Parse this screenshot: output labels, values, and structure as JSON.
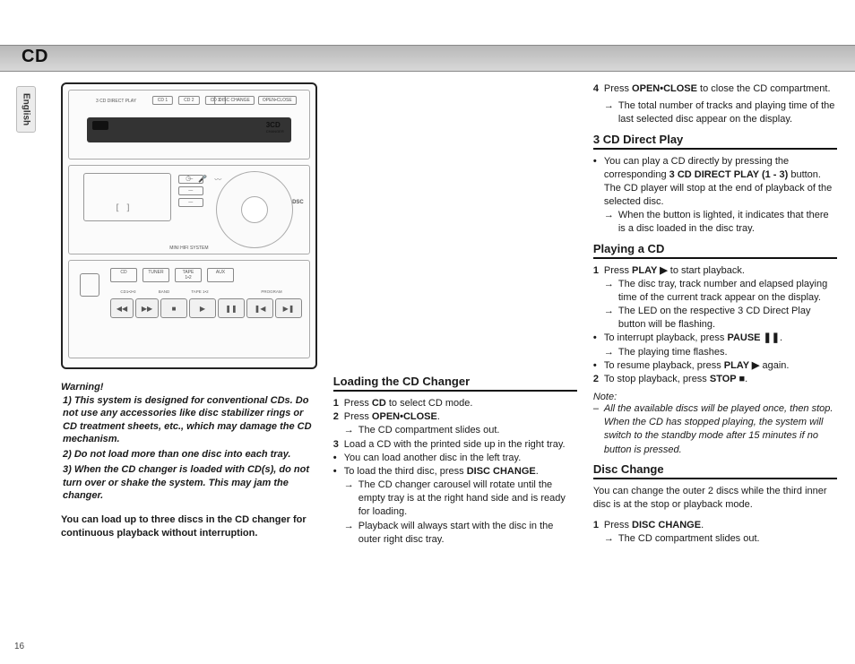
{
  "header": {
    "tab": "CD",
    "language": "English",
    "pageNumber": "16"
  },
  "device": {
    "topLabel": "3 CD DIRECT PLAY",
    "cdButtons": [
      "CD 1",
      "CD 2",
      "CD 3"
    ],
    "topRight": [
      "DISC CHANGE",
      "OPEN•CLOSE"
    ],
    "brand3cd": "3CD",
    "brand3cdSub": "CHANGER",
    "miniHifi": "MINI HIFI SYSTEM",
    "dsc": "DSC",
    "srcButtons": [
      "CD",
      "TUNER",
      "TAPE 1•2",
      "AUX"
    ],
    "srcTopRow": [
      "CD1•2•3",
      "BAND",
      "TAPE 1•2",
      "",
      "PROGRAM"
    ],
    "transportLabels": [
      "SEARCH",
      "",
      "STOP",
      "PLAY",
      "PAUSE",
      "PREV",
      "NEXT"
    ],
    "lcdGlyph": "[ ]"
  },
  "leftCol": {
    "warningTitle": "Warning!",
    "warnings": [
      "1) This system is designed for conventional CDs. Do not use any accessories like disc stabilizer rings or CD treatment sheets, etc., which may damage the CD mechanism.",
      "2) Do not load more than one disc into each tray.",
      "3) When the CD changer is loaded with CD(s), do not turn over or shake the system. This may jam the changer."
    ],
    "boldPara": "You can load up to three discs in the CD changer for continuous playback without interruption."
  },
  "midCol": {
    "loadingTitle": "Loading the CD Changer",
    "step1_n": "1",
    "step1_t": "Press <b>CD</b> to select CD mode.",
    "step2_n": "2",
    "step2_t": "Press <b>OPEN•CLOSE</b>.",
    "step2_arrow": "The CD compartment slides out.",
    "step3_n": "3",
    "step3_t": "Load a CD with the printed side up in the right tray.",
    "bullet1": "You can load another disc in the left tray.",
    "bullet2": "To load the third disc, press <b>DISC CHANGE</b>.",
    "bullet2_arrow": "The CD changer carousel will rotate until the empty tray is at the right hand side and is ready for loading.",
    "bullet2_arrow2": "Playback will always start with the disc in the outer right disc tray."
  },
  "rightCol": {
    "step4_n": "4",
    "step4_t": "Press <b>OPEN•CLOSE</b> to close the CD compartment.",
    "step4_arrow": "The total number of tracks and playing time of the last selected disc appear on the display.",
    "directTitle": "3 CD Direct Play",
    "direct_b1": "You can play a CD directly by pressing the corresponding <b>3 CD DIRECT PLAY (1 - 3)</b> button. The CD player will stop at the end of playback of the selected disc.",
    "direct_arrow": "When the button is lighted, it indicates that there is a disc loaded in the disc tray.",
    "playingTitle": "Playing a CD",
    "play1_n": "1",
    "play1_t": "Press <b>PLAY ▶</b> to start playback.",
    "play1_arrow1": "The disc tray, track number and elapsed playing time of the current track appear on the display.",
    "play1_arrow2": "The LED on the respective 3 CD Direct Play button will be flashing.",
    "play_b1": "To interrupt playback, press <b>PAUSE ❚❚</b>.",
    "play_b1_arrow": "The playing time flashes.",
    "play_b2": "To resume playback, press <b>PLAY ▶</b> again.",
    "play2_n": "2",
    "play2_t": "To stop playback, press <b>STOP ■</b>.",
    "noteTitle": "Note:",
    "noteBody": "All the available discs will be played once, then stop. When the CD has stopped playing, the system will switch to the standby mode after 15 minutes if no button is pressed.",
    "discChangeTitle": "Disc Change",
    "discChangeIntro": "You can change the outer 2 discs while the third inner disc is at the stop or playback mode.",
    "dc1_n": "1",
    "dc1_t": "Press <b>DISC CHANGE</b>.",
    "dc1_arrow": "The CD compartment slides out."
  }
}
